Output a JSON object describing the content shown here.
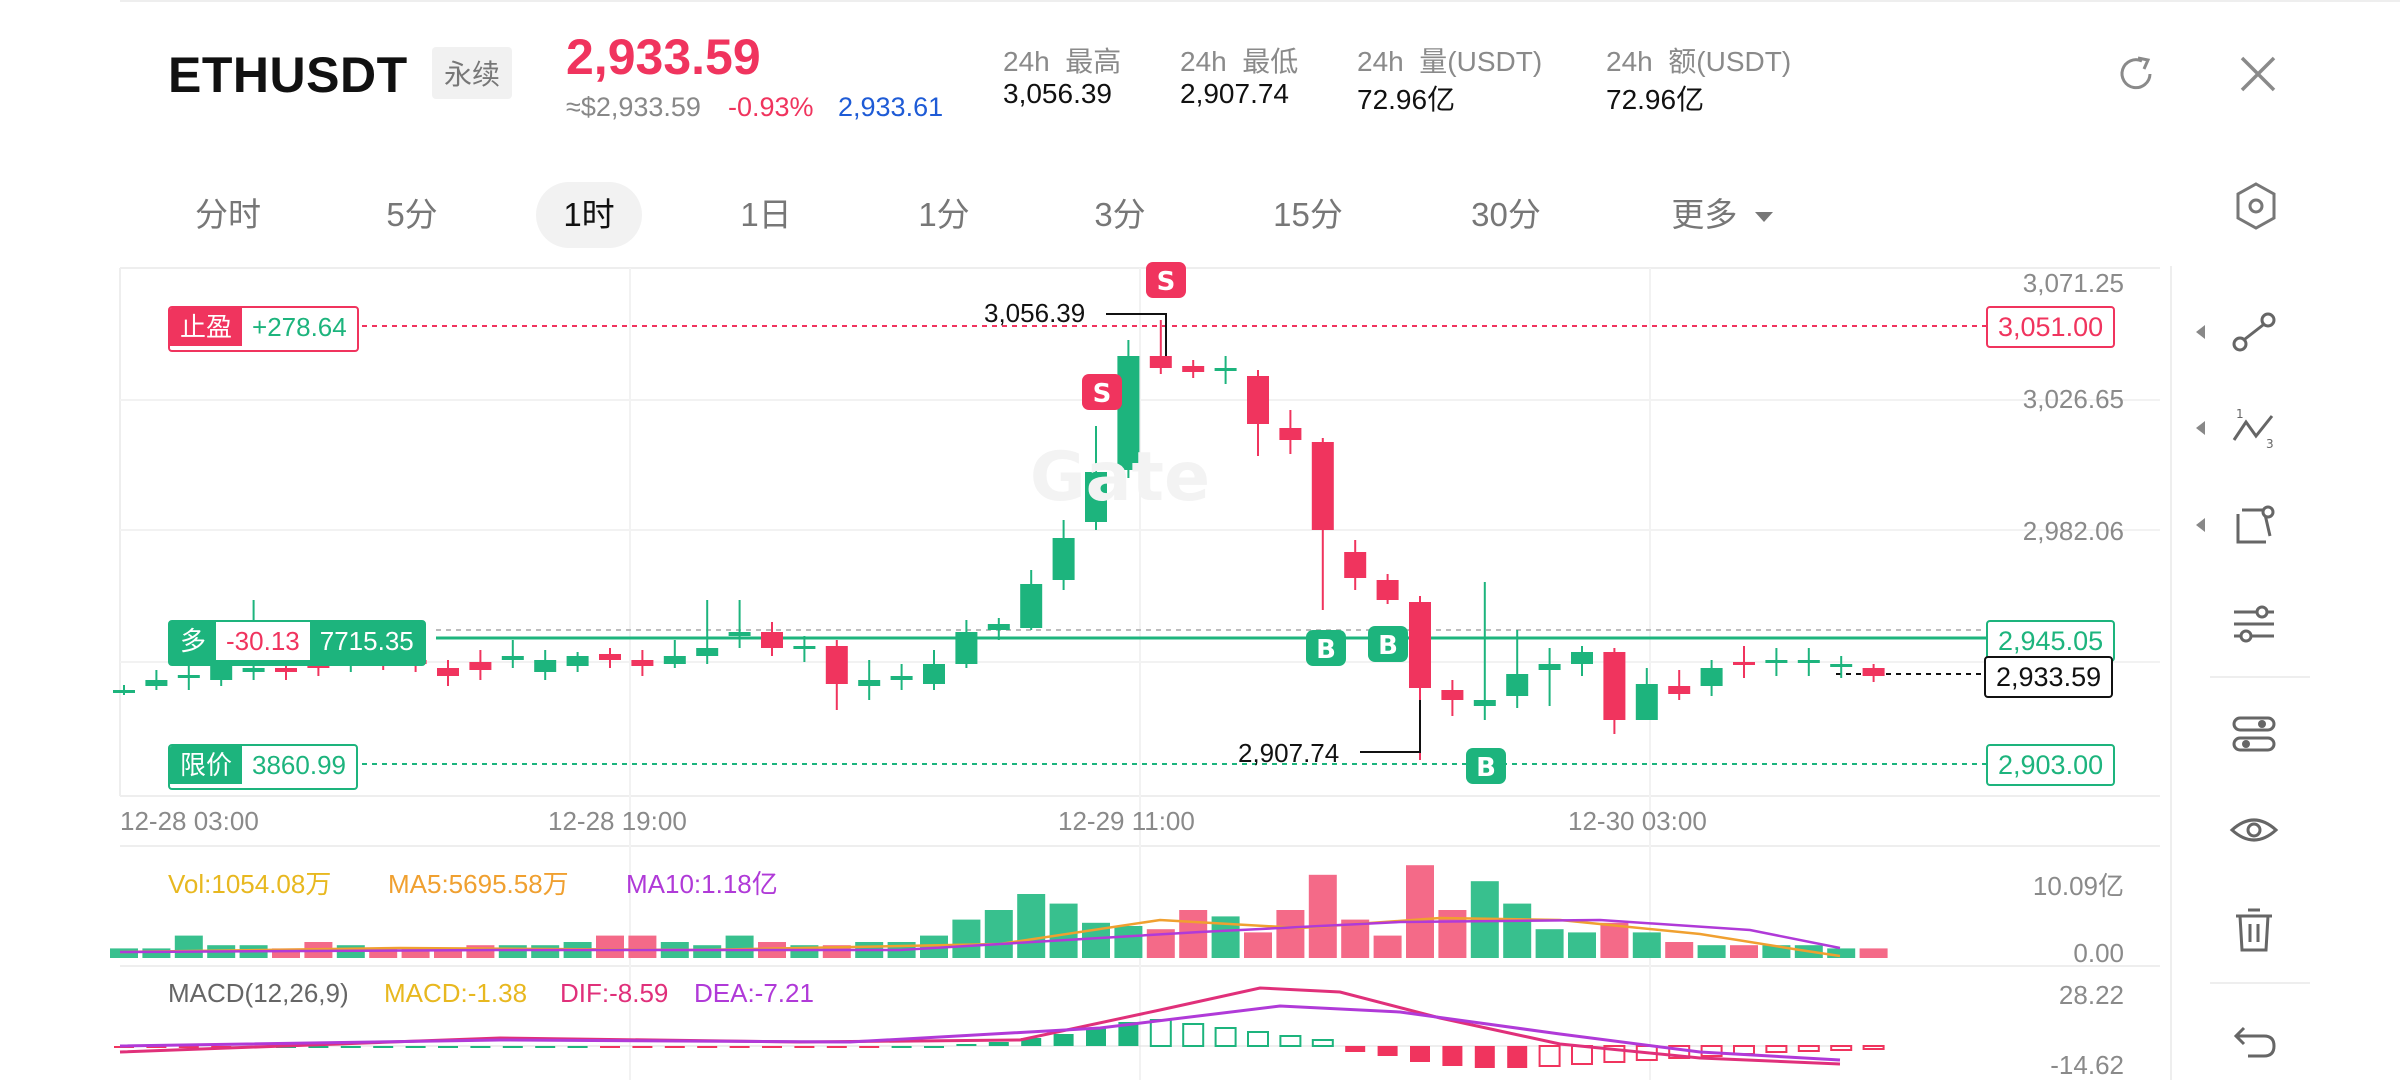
{
  "header": {
    "symbol": "ETHUSDT",
    "contract_tag": "永续",
    "last_price": "2,933.59",
    "usd_price": "≈$2,933.59",
    "change_pct": "-0.93%",
    "mark_price": "2,933.61",
    "stats": [
      {
        "label": "24h  最高",
        "value": "3,056.39"
      },
      {
        "label": "24h  最低",
        "value": "2,907.74"
      },
      {
        "label": "24h  量(USDT)",
        "value": "72.96亿"
      },
      {
        "label": "24h  额(USDT)",
        "value": "72.96亿"
      }
    ],
    "icons": [
      "refresh-icon",
      "close-icon"
    ]
  },
  "timeframes": {
    "tabs": [
      "分时",
      "5分",
      "1时",
      "1日",
      "1分",
      "3分",
      "15分",
      "30分"
    ],
    "active": "1时",
    "more_label": "更多"
  },
  "chart": {
    "y_axis_labels": [
      "3,071.25",
      "3,026.65",
      "2,982.06"
    ],
    "x_axis_labels": [
      "12-28 03:00",
      "12-28 19:00",
      "12-29 11:00",
      "12-30 03:00"
    ],
    "high_marker": "3,056.39",
    "low_marker": "2,907.74",
    "take_profit": {
      "label": "止盈",
      "pnl": "+278.64",
      "price": "3,051.00"
    },
    "long_position": {
      "label": "多",
      "pnl": "-30.13",
      "amount": "7715.35",
      "price": "2,945.05"
    },
    "limit_order": {
      "label": "限价",
      "amount": "3860.99",
      "price": "2,903.00"
    },
    "current_price_box": "2,933.59",
    "trade_markers": [
      "S",
      "S",
      "B",
      "B",
      "B"
    ],
    "watermark": "Gate"
  },
  "volume": {
    "vol": "Vol:1054.08万",
    "ma5": "MA5:5695.58万",
    "ma10": "MA10:1.18亿",
    "axis_top": "10.09亿",
    "axis_bottom": "0.00"
  },
  "macd": {
    "title": "MACD(12,26,9)",
    "macd": "MACD:-1.38",
    "dif": "DIF:-8.59",
    "dea": "DEA:-7.21",
    "axis_top": "28.22",
    "axis_bottom": "-14.62"
  },
  "toolbar": {
    "icons": [
      "trend-line-icon",
      "wave-tool-icon",
      "shape-tool-icon",
      "indicator-settings-icon",
      "layout-settings-icon",
      "eye-icon",
      "trash-icon",
      "undo-icon"
    ]
  },
  "colors": {
    "up": "#1db47d",
    "down": "#f0345e",
    "ma5": "#f0a030",
    "ma10": "#b03ad8",
    "macd": "#e8b820",
    "dif": "#e0307a",
    "dea": "#b03ad8"
  }
}
